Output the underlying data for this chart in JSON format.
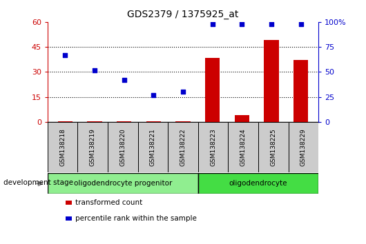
{
  "title": "GDS2379 / 1375925_at",
  "samples": [
    "GSM138218",
    "GSM138219",
    "GSM138220",
    "GSM138221",
    "GSM138222",
    "GSM138223",
    "GSM138224",
    "GSM138225",
    "GSM138229"
  ],
  "transformed_count": [
    0.3,
    0.3,
    0.3,
    0.3,
    0.3,
    38.5,
    4.0,
    49.0,
    37.0
  ],
  "percentile_rank": [
    67,
    52,
    42,
    27,
    30,
    98,
    98,
    98,
    98
  ],
  "ylim_left": [
    0,
    60
  ],
  "ylim_right": [
    0,
    100
  ],
  "yticks_left": [
    0,
    15,
    30,
    45,
    60
  ],
  "yticks_right": [
    0,
    25,
    50,
    75,
    100
  ],
  "bar_color": "#cc0000",
  "scatter_color": "#0000cc",
  "groups": [
    {
      "label": "oligodendrocyte progenitor",
      "start": 0,
      "end": 5,
      "color": "#90ee90"
    },
    {
      "label": "oligodendrocyte",
      "start": 5,
      "end": 9,
      "color": "#44dd44"
    }
  ],
  "left_axis_color": "#cc0000",
  "right_axis_color": "#0000cc",
  "legend_items": [
    {
      "label": "transformed count",
      "color": "#cc0000"
    },
    {
      "label": "percentile rank within the sample",
      "color": "#0000cc"
    }
  ],
  "dev_stage_label": "development stage",
  "sample_box_color": "#cccccc",
  "fig_width": 5.3,
  "fig_height": 3.54,
  "dpi": 100
}
